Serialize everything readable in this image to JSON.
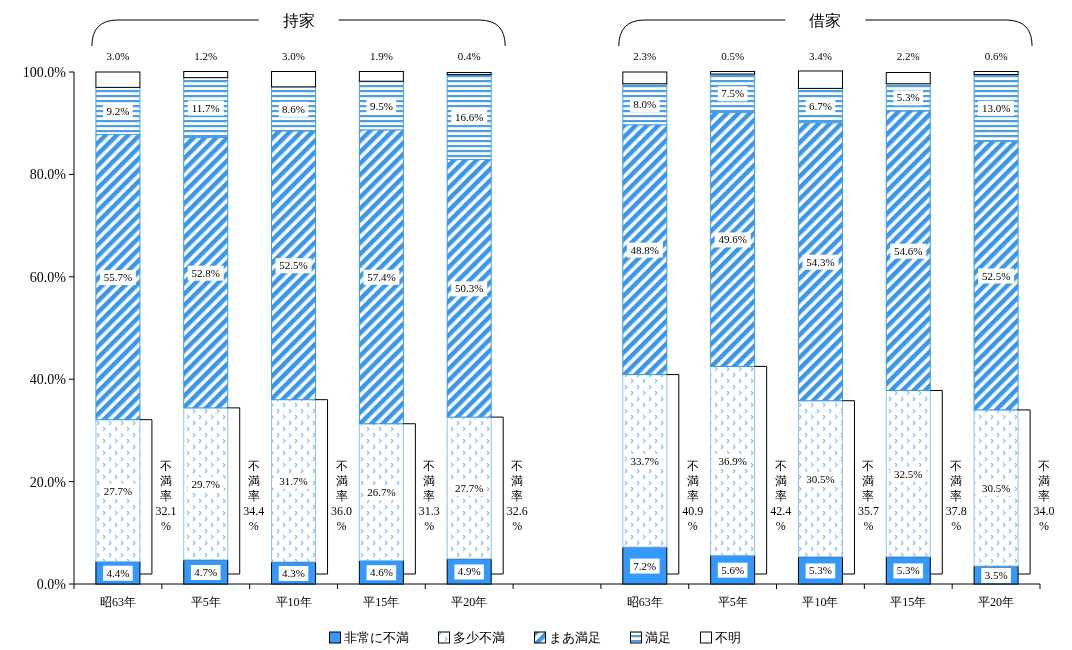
{
  "chart_data": {
    "type": "bar",
    "stacked": true,
    "categories": [
      "昭63年",
      "平5年",
      "平10年",
      "平15年",
      "平20年",
      null,
      "昭63年",
      "平5年",
      "平10年",
      "平15年",
      "平20年"
    ],
    "ylim": [
      0,
      100
    ],
    "yticks": [
      {
        "value": 0,
        "label": "0.0%"
      },
      {
        "value": 20,
        "label": "20.0%"
      },
      {
        "value": 40,
        "label": "40.0%"
      },
      {
        "value": 60,
        "label": "60.0%"
      },
      {
        "value": 80,
        "label": "80.0%"
      },
      {
        "value": 100,
        "label": "100.0%"
      }
    ],
    "legend": "bottom",
    "grid": false,
    "series": [
      {
        "name": "非常に不満",
        "color": "#3399ff",
        "values": [
          4.4,
          4.7,
          4.3,
          4.6,
          4.9,
          null,
          7.2,
          5.6,
          5.3,
          5.3,
          3.5
        ],
        "value_labels": [
          "4.4%",
          "4.7%",
          "4.3%",
          "4.6%",
          "4.9%",
          null,
          "7.2%",
          "5.6%",
          "5.3%",
          "5.3%",
          "3.5%"
        ]
      },
      {
        "name": "多少不満",
        "color": "#8fc3ee",
        "values": [
          27.7,
          29.7,
          31.7,
          26.7,
          27.7,
          null,
          33.7,
          36.9,
          30.5,
          32.5,
          30.5
        ],
        "value_labels": [
          "27.7%",
          "29.7%",
          "31.7%",
          "26.7%",
          "27.7%",
          null,
          "33.7%",
          "36.9%",
          "30.5%",
          "32.5%",
          "30.5%"
        ]
      },
      {
        "name": "まあ満足",
        "color": "#3a96e8",
        "values": [
          55.7,
          52.8,
          52.5,
          57.4,
          50.3,
          null,
          48.8,
          49.6,
          54.3,
          54.6,
          52.5
        ],
        "value_labels": [
          "55.7%",
          "52.8%",
          "52.5%",
          "57.4%",
          "50.3%",
          null,
          "48.8%",
          "49.6%",
          "54.3%",
          "54.6%",
          "52.5%"
        ]
      },
      {
        "name": "満足",
        "color": "#4a9fe6",
        "values": [
          9.2,
          11.7,
          8.6,
          9.5,
          16.6,
          null,
          8.0,
          7.5,
          6.7,
          5.3,
          13.0
        ],
        "value_labels": [
          "9.2%",
          "11.7%",
          "8.6%",
          "9.5%",
          "16.6%",
          null,
          "8.0%",
          "7.5%",
          "6.7%",
          "5.3%",
          "13.0%"
        ]
      },
      {
        "name": "不明",
        "color": "#ffffff",
        "values": [
          3.0,
          1.2,
          3.0,
          1.9,
          0.4,
          null,
          2.3,
          0.5,
          3.4,
          2.2,
          0.6
        ],
        "value_labels": [
          "3.0%",
          "1.2%",
          "3.0%",
          "1.9%",
          "0.4%",
          null,
          "2.3%",
          "0.5%",
          "3.4%",
          "2.2%",
          "0.6%"
        ]
      }
    ],
    "annotations": [
      "持家",
      "借家",
      "不満率32.1%",
      "不満率34.4%",
      "不満率36.0%",
      "不満率31.3%",
      "不満率32.6%",
      "不満率40.9%",
      "不満率42.4%",
      "不満率35.7%",
      "不満率37.8%",
      "不満率34.0%"
    ]
  }
}
